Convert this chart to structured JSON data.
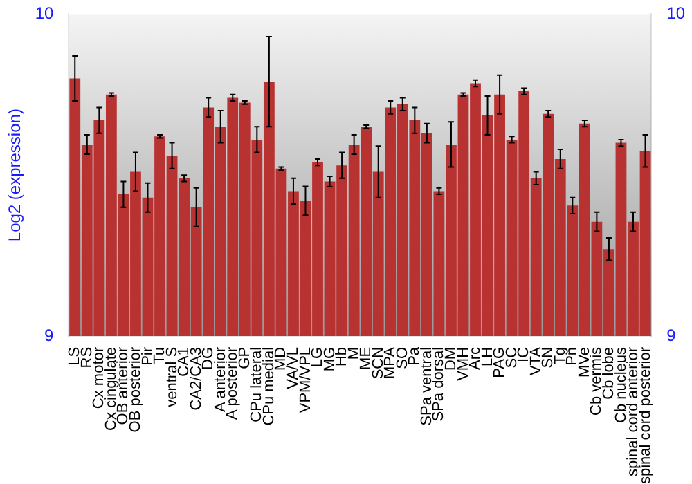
{
  "chart_data": {
    "type": "bar",
    "ylabel": "Log2 (expression)",
    "categories": [
      "LS",
      "RS",
      "Cx motor",
      "Cx cingulate",
      "OB anterior",
      "OB posterior",
      "Pir",
      "Tu",
      "ventral S",
      "CA1",
      "CA2/CA3",
      "DG",
      "A anterior",
      "A posterior",
      "GP",
      "CPu lateral",
      "CPu medial",
      "MD",
      "VA/VL",
      "VPM/VPL",
      "LG",
      "MG",
      "Hb",
      "M",
      "ME",
      "SCN",
      "MPA",
      "SO",
      "Pa",
      "SPa ventral",
      "SPa dorsal",
      "DM",
      "VMH",
      "Arc",
      "LH",
      "PAG",
      "SC",
      "IC",
      "VTA",
      "SN",
      "Tg",
      "Pn",
      "MVe",
      "Cb vermis",
      "Cb lobe",
      "Cb nucleus",
      "spinal cord anterior",
      "spinal cord posterior"
    ],
    "values": [
      9.8,
      9.595,
      9.67,
      9.75,
      9.44,
      9.51,
      9.43,
      9.62,
      9.56,
      9.49,
      9.4,
      9.71,
      9.65,
      9.74,
      9.725,
      9.61,
      9.79,
      9.52,
      9.45,
      9.42,
      9.54,
      9.48,
      9.53,
      9.595,
      9.65,
      9.51,
      9.71,
      9.72,
      9.67,
      9.63,
      9.45,
      9.595,
      9.75,
      9.785,
      9.685,
      9.75,
      9.61,
      9.76,
      9.49,
      9.69,
      9.55,
      9.405,
      9.66,
      9.355,
      9.27,
      9.6,
      9.355,
      9.575
    ],
    "errors": [
      0.07,
      0.03,
      0.04,
      0.005,
      0.04,
      0.06,
      0.045,
      0.005,
      0.04,
      0.01,
      0.06,
      0.03,
      0.05,
      0.01,
      0.005,
      0.04,
      0.14,
      0.005,
      0.04,
      0.045,
      0.01,
      0.016,
      0.04,
      0.03,
      0.005,
      0.08,
      0.02,
      0.02,
      0.04,
      0.03,
      0.01,
      0.07,
      0.005,
      0.01,
      0.06,
      0.06,
      0.01,
      0.01,
      0.02,
      0.01,
      0.03,
      0.025,
      0.01,
      0.03,
      0.035,
      0.01,
      0.03,
      0.05
    ],
    "color": "#b83232",
    "ylim": [
      9,
      10
    ],
    "yticks": [
      9,
      10
    ],
    "y2lim": [
      9,
      10
    ],
    "y2ticks": [
      9,
      10
    ],
    "grid": false,
    "legend": false
  }
}
